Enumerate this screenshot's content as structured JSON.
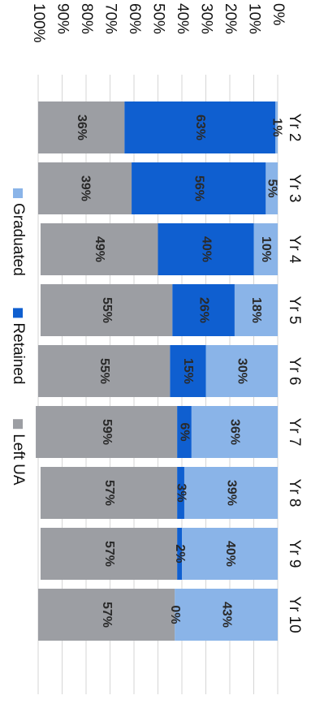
{
  "chart_data": {
    "type": "bar",
    "stacked": true,
    "orientation": "rotated-90-clockwise",
    "categories": [
      "Yr 2",
      "Yr 3",
      "Yr 4",
      "Yr 5",
      "Yr 6",
      "Yr 7",
      "Yr 8",
      "Yr 9",
      "Yr 10"
    ],
    "series": [
      {
        "name": "Graduated",
        "color": "#8ab4e8",
        "values": [
          1,
          5,
          10,
          18,
          30,
          36,
          39,
          40,
          43
        ],
        "labels": [
          "1%",
          "5%",
          "10%",
          "18%",
          "30%",
          "36%",
          "39%",
          "40%",
          "43%"
        ]
      },
      {
        "name": "Retained",
        "color": "#0f5fd0",
        "values": [
          63,
          56,
          40,
          26,
          15,
          6,
          3,
          2,
          0
        ],
        "labels": [
          "63%",
          "56%",
          "40%",
          "26%",
          "15%",
          "6%",
          "3%",
          "2%",
          "0%"
        ]
      },
      {
        "name": "Left UA",
        "color": "#9c9ea3",
        "values": [
          36,
          39,
          49,
          55,
          55,
          59,
          57,
          57,
          57
        ],
        "labels": [
          "36%",
          "39%",
          "49%",
          "55%",
          "55%",
          "59%",
          "57%",
          "57%",
          "57%"
        ]
      }
    ],
    "ylim": [
      0,
      100
    ],
    "yticks": [
      "0%",
      "10%",
      "20%",
      "30%",
      "40%",
      "50%",
      "60%",
      "70%",
      "80%",
      "90%",
      "100%"
    ],
    "legend_position": "right",
    "grid": true
  }
}
